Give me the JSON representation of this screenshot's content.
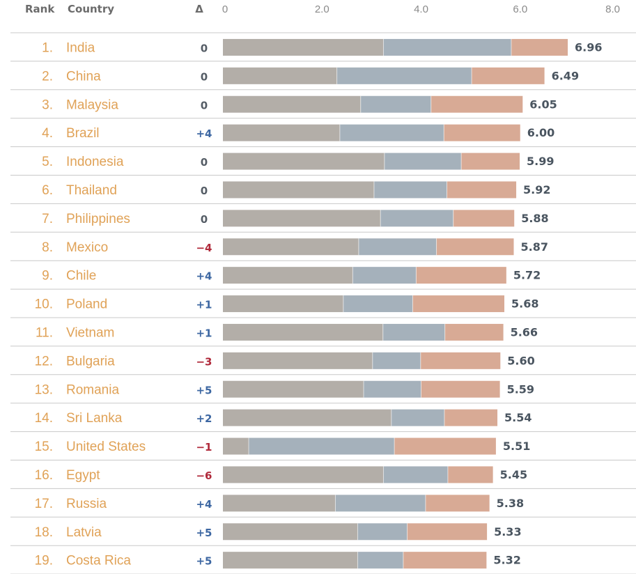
{
  "chart_data": {
    "type": "bar",
    "stacked": true,
    "orientation": "horizontal",
    "headers": {
      "rank": "Rank",
      "country": "Country",
      "delta": "Δ"
    },
    "x_ticks": [
      "0",
      "2.0",
      "4.0",
      "6.0",
      "8.0"
    ],
    "xlim": [
      0,
      8
    ],
    "colors": [
      "#b3aea8",
      "#a5b1bb",
      "#d8aa95"
    ],
    "delta_colors": {
      "up": "#3d67a2",
      "down": "#b02a3b",
      "zero": "#555d66"
    },
    "rows": [
      {
        "rank": "1.",
        "country": "India",
        "delta": "0",
        "segments": [
          3.24,
          2.58,
          1.14
        ],
        "total": "6.96"
      },
      {
        "rank": "2.",
        "country": "China",
        "delta": "0",
        "segments": [
          2.3,
          2.72,
          1.47
        ],
        "total": "6.49"
      },
      {
        "rank": "3.",
        "country": "Malaysia",
        "delta": "0",
        "segments": [
          2.78,
          1.42,
          1.85
        ],
        "total": "6.05"
      },
      {
        "rank": "4.",
        "country": "Brazil",
        "delta": "+4",
        "segments": [
          2.36,
          2.1,
          1.54
        ],
        "total": "6.00"
      },
      {
        "rank": "5.",
        "country": "Indonesia",
        "delta": "0",
        "segments": [
          3.26,
          1.55,
          1.18
        ],
        "total": "5.99"
      },
      {
        "rank": "6.",
        "country": "Thailand",
        "delta": "0",
        "segments": [
          3.05,
          1.47,
          1.4
        ],
        "total": "5.92"
      },
      {
        "rank": "7.",
        "country": "Philippines",
        "delta": "0",
        "segments": [
          3.18,
          1.47,
          1.23
        ],
        "total": "5.88"
      },
      {
        "rank": "8.",
        "country": "Mexico",
        "delta": "−4",
        "segments": [
          2.74,
          1.57,
          1.56
        ],
        "total": "5.87"
      },
      {
        "rank": "9.",
        "country": "Chile",
        "delta": "+4",
        "segments": [
          2.62,
          1.28,
          1.82
        ],
        "total": "5.72"
      },
      {
        "rank": "10.",
        "country": "Poland",
        "delta": "+1",
        "segments": [
          2.43,
          1.4,
          1.85
        ],
        "total": "5.68"
      },
      {
        "rank": "11.",
        "country": "Vietnam",
        "delta": "+1",
        "segments": [
          3.23,
          1.25,
          1.18
        ],
        "total": "5.66"
      },
      {
        "rank": "12.",
        "country": "Bulgaria",
        "delta": "−3",
        "segments": [
          3.02,
          0.97,
          1.61
        ],
        "total": "5.60"
      },
      {
        "rank": "13.",
        "country": "Romania",
        "delta": "+5",
        "segments": [
          2.84,
          1.16,
          1.59
        ],
        "total": "5.59"
      },
      {
        "rank": "14.",
        "country": "Sri Lanka",
        "delta": "+2",
        "segments": [
          3.4,
          1.07,
          1.07
        ],
        "total": "5.54"
      },
      {
        "rank": "15.",
        "country": "United States",
        "delta": "−1",
        "segments": [
          0.52,
          2.94,
          2.05
        ],
        "total": "5.51"
      },
      {
        "rank": "16.",
        "country": "Egypt",
        "delta": "−6",
        "segments": [
          3.24,
          1.3,
          0.91
        ],
        "total": "5.45"
      },
      {
        "rank": "17.",
        "country": "Russia",
        "delta": "+4",
        "segments": [
          2.27,
          1.82,
          1.29
        ],
        "total": "5.38"
      },
      {
        "rank": "18.",
        "country": "Latvia",
        "delta": "+5",
        "segments": [
          2.72,
          1.0,
          1.61
        ],
        "total": "5.33"
      },
      {
        "rank": "19.",
        "country": "Costa Rica",
        "delta": "+5",
        "segments": [
          2.72,
          0.92,
          1.68
        ],
        "total": "5.32"
      }
    ]
  }
}
